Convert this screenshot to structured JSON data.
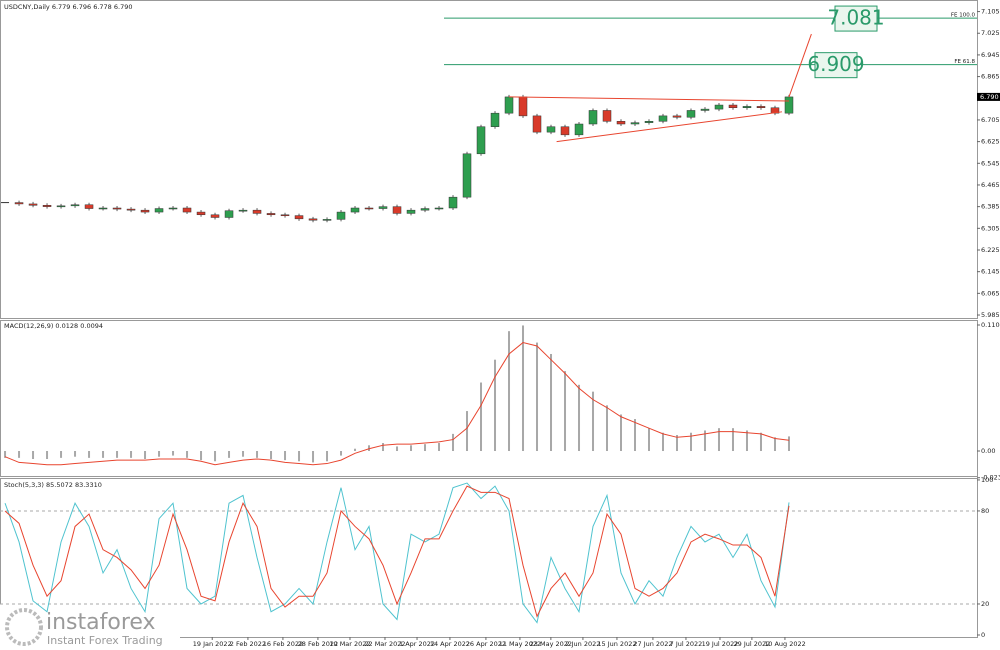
{
  "chart_data": [
    {
      "type": "candlestick",
      "title": "USDCNY,Daily 6.779 6.796 6.778 6.790",
      "values": [
        6.4,
        6.395,
        6.39,
        6.385,
        6.388,
        6.392,
        6.378,
        6.38,
        6.376,
        6.372,
        6.365,
        6.378,
        6.38,
        6.365,
        6.355,
        6.345,
        6.37,
        6.372,
        6.36,
        6.355,
        6.352,
        6.34,
        6.335,
        6.338,
        6.365,
        6.38,
        6.378,
        6.385,
        6.36,
        6.372,
        6.378,
        6.38,
        6.42,
        6.58,
        6.68,
        6.73,
        6.79,
        6.72,
        6.66,
        6.68,
        6.65,
        6.69,
        6.74,
        6.7,
        6.69,
        6.695,
        6.7,
        6.72,
        6.715,
        6.74,
        6.745,
        6.76,
        6.75,
        6.755,
        6.75,
        6.73,
        6.79
      ],
      "up_color": "#2e9e4f",
      "down_color": "#d83a2a",
      "ylim": [
        5.974,
        7.144
      ],
      "yticks": [
        7.105,
        7.025,
        6.945,
        6.865,
        6.705,
        6.625,
        6.545,
        6.465,
        6.385,
        6.305,
        6.225,
        6.145,
        6.065,
        5.985
      ],
      "price_tag": {
        "value": 6.79,
        "label": "6.790"
      },
      "xlim": [
        -0.36,
        69.43
      ],
      "xticks": [
        {
          "value": 14.8,
          "label": "19 Jan 2022"
        },
        {
          "value": 17.35,
          "label": "2 Feb 2022"
        },
        {
          "value": 19.85,
          "label": "16 Feb 2022"
        },
        {
          "value": 22.35,
          "label": "28 Feb 2022"
        },
        {
          "value": 24.64,
          "label": "10 Mar 2022"
        },
        {
          "value": 27.14,
          "label": "22 Mar 2022"
        },
        {
          "value": 29.43,
          "label": "1 Apr 2022"
        },
        {
          "value": 31.78,
          "label": "14 Apr 2022"
        },
        {
          "value": 34.35,
          "label": "26 Apr 2022"
        },
        {
          "value": 36.78,
          "label": "11 May 2022"
        },
        {
          "value": 38.99,
          "label": "23 May 2022"
        },
        {
          "value": 41.28,
          "label": "2 Jun 2022"
        },
        {
          "value": 43.71,
          "label": "15 Jun 2022"
        },
        {
          "value": 46.28,
          "label": "27 Jun 2022"
        },
        {
          "value": 48.64,
          "label": "7 Jul 2022"
        },
        {
          "value": 51.07,
          "label": "19 Jul 2022"
        },
        {
          "value": 53.35,
          "label": "29 Jul 2022"
        },
        {
          "value": 55.71,
          "label": "10 Aug 2022"
        }
      ],
      "levels": [
        {
          "label": "FE 100.0",
          "value": 7.081,
          "color": "#2a9a6a"
        },
        {
          "label": "FE 61.8",
          "value": 6.909,
          "color": "#2a9a6a"
        }
      ],
      "trendlines": [
        {
          "x": [
            36,
            56
          ],
          "y": [
            6.79,
            6.775
          ]
        },
        {
          "x": [
            39.4,
            55.5
          ],
          "y": [
            6.625,
            6.735
          ]
        },
        {
          "x": [
            56,
            57.6
          ],
          "y": [
            6.79,
            7.022
          ]
        }
      ],
      "trend_color": "#e8452f",
      "watermark": {
        "brand": "instaforex",
        "slogan": "Instant Forex Trading"
      }
    },
    {
      "type": "macd",
      "title": "MACD(12,26,9) 0.0128 0.0094",
      "values": [
        -0.006,
        -0.006,
        -0.007,
        -0.007,
        -0.006,
        -0.005,
        -0.006,
        -0.006,
        -0.006,
        -0.006,
        -0.007,
        -0.005,
        -0.004,
        -0.006,
        -0.008,
        -0.009,
        -0.006,
        -0.005,
        -0.006,
        -0.007,
        -0.008,
        -0.009,
        -0.01,
        -0.009,
        -0.004,
        0.002,
        0.005,
        0.007,
        0.004,
        0.005,
        0.006,
        0.007,
        0.015,
        0.035,
        0.06,
        0.08,
        0.105,
        0.11,
        0.095,
        0.085,
        0.07,
        0.058,
        0.052,
        0.04,
        0.032,
        0.028,
        0.02,
        0.016,
        0.014,
        0.016,
        0.018,
        0.02,
        0.02,
        0.018,
        0.016,
        0.012,
        0.0128
      ],
      "signal": [
        -0.005,
        -0.01,
        -0.011,
        -0.012,
        -0.012,
        -0.011,
        -0.01,
        -0.009,
        -0.008,
        -0.008,
        -0.008,
        -0.007,
        -0.007,
        -0.007,
        -0.009,
        -0.012,
        -0.01,
        -0.008,
        -0.007,
        -0.008,
        -0.01,
        -0.011,
        -0.012,
        -0.011,
        -0.008,
        -0.002,
        0.002,
        0.005,
        0.006,
        0.006,
        0.007,
        0.008,
        0.01,
        0.02,
        0.04,
        0.065,
        0.085,
        0.095,
        0.092,
        0.08,
        0.068,
        0.055,
        0.045,
        0.038,
        0.03,
        0.025,
        0.02,
        0.015,
        0.012,
        0.013,
        0.015,
        0.017,
        0.017,
        0.016,
        0.015,
        0.011,
        0.0094
      ],
      "bar_color": "#a8a8a8",
      "signal_color": "#e8452f",
      "ylim": [
        -0.0219,
        0.1139
      ],
      "yticks": [
        0.1104,
        {
          "value": 0,
          "label": "0.00"
        },
        -0.0234
      ]
    },
    {
      "type": "stochastic",
      "title": "Stoch(5,3,3) 85.5072 83.3310",
      "main": [
        85,
        60,
        22,
        15,
        60,
        85,
        70,
        40,
        55,
        30,
        15,
        75,
        85,
        30,
        20,
        25,
        85,
        90,
        50,
        15,
        20,
        30,
        20,
        60,
        95,
        55,
        70,
        20,
        10,
        65,
        60,
        65,
        95,
        98,
        88,
        96,
        80,
        20,
        8,
        50,
        30,
        15,
        70,
        90,
        40,
        20,
        35,
        25,
        50,
        70,
        60,
        65,
        50,
        65,
        35,
        18,
        85.5072
      ],
      "signal": [
        80,
        72,
        45,
        25,
        35,
        70,
        78,
        55,
        50,
        42,
        30,
        45,
        78,
        55,
        25,
        22,
        60,
        85,
        70,
        30,
        18,
        25,
        25,
        40,
        80,
        70,
        62,
        45,
        20,
        40,
        62,
        62,
        80,
        96,
        92,
        92,
        88,
        45,
        12,
        30,
        40,
        25,
        40,
        78,
        65,
        30,
        25,
        30,
        40,
        60,
        65,
        62,
        58,
        58,
        50,
        25,
        83.331
      ],
      "main_color": "#4fc3cf",
      "signal_color": "#e8452f",
      "ylim": [
        -1.3,
        100.6
      ],
      "yticks": [
        100,
        80,
        20,
        0
      ],
      "levels": [
        80,
        20
      ]
    }
  ]
}
